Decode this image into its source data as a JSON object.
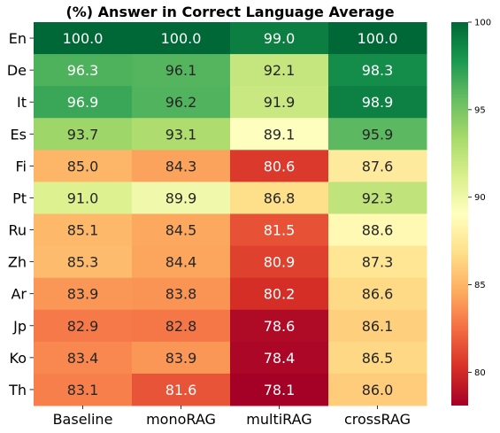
{
  "chart_data": {
    "type": "heatmap",
    "title": "(%) Answer in Correct Language Average",
    "rows": [
      "En",
      "De",
      "It",
      "Es",
      "Fi",
      "Pt",
      "Ru",
      "Zh",
      "Ar",
      "Jp",
      "Ko",
      "Th"
    ],
    "columns": [
      "Baseline",
      "monoRAG",
      "multiRAG",
      "crossRAG"
    ],
    "values": [
      [
        100.0,
        100.0,
        99.0,
        100.0
      ],
      [
        96.3,
        96.1,
        92.1,
        98.3
      ],
      [
        96.9,
        96.2,
        91.9,
        98.9
      ],
      [
        93.7,
        93.1,
        89.1,
        95.9
      ],
      [
        85.0,
        84.3,
        80.6,
        87.6
      ],
      [
        91.0,
        89.9,
        86.8,
        92.3
      ],
      [
        85.1,
        84.5,
        81.5,
        88.6
      ],
      [
        85.3,
        84.4,
        80.9,
        87.3
      ],
      [
        83.9,
        83.8,
        80.2,
        86.6
      ],
      [
        82.9,
        82.8,
        78.6,
        86.1
      ],
      [
        83.4,
        83.9,
        78.4,
        86.5
      ],
      [
        83.1,
        81.6,
        78.1,
        86.0
      ]
    ],
    "colormap": "RdYlGn",
    "vmin": 78.1,
    "vmax": 100.0,
    "colorbar_ticks": [
      80,
      85,
      90,
      95,
      100
    ],
    "annotations": true,
    "grid": false
  }
}
